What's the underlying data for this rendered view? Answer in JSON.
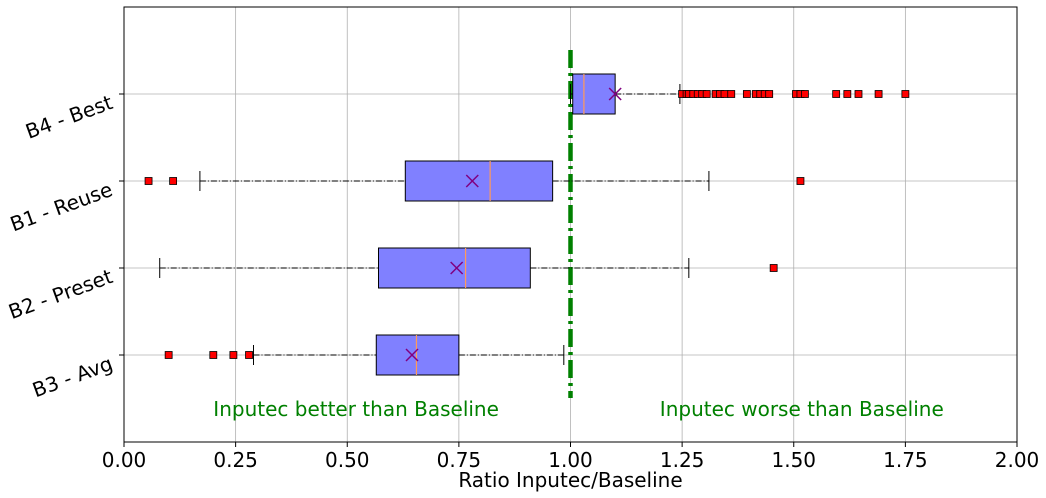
{
  "chart_data": {
    "type": "boxplot",
    "orientation": "horizontal",
    "xlabel": "Ratio Inputec/Baseline",
    "xlim": [
      0.0,
      2.0
    ],
    "xticks": [
      "0.00",
      "0.25",
      "0.50",
      "0.75",
      "1.00",
      "1.25",
      "1.50",
      "1.75",
      "2.00"
    ],
    "grid": true,
    "reference_line": {
      "x": 1.0,
      "color": "#008000",
      "style": "dash-dot"
    },
    "box_color": "#8080ff",
    "median_color": "#ff9a5a",
    "mean_marker_color": "#800080",
    "outlier_color": "#ff0000",
    "series": [
      {
        "name": "B3 - Avg",
        "whisker_low": 0.29,
        "q1": 0.565,
        "median": 0.655,
        "q3": 0.75,
        "whisker_high": 0.985,
        "mean": 0.645,
        "outliers": [
          0.1,
          0.2,
          0.245,
          0.28
        ]
      },
      {
        "name": "B2 - Preset",
        "whisker_low": 0.08,
        "q1": 0.57,
        "median": 0.765,
        "q3": 0.91,
        "whisker_high": 1.265,
        "mean": 0.745,
        "outliers": [
          1.455
        ]
      },
      {
        "name": "B1 - Reuse",
        "whisker_low": 0.17,
        "q1": 0.63,
        "median": 0.82,
        "q3": 0.96,
        "whisker_high": 1.31,
        "mean": 0.78,
        "outliers": [
          0.055,
          0.11,
          1.515
        ]
      },
      {
        "name": "B4 - Best",
        "whisker_low": 1.0,
        "q1": 1.005,
        "median": 1.03,
        "q3": 1.1,
        "whisker_high": 1.245,
        "mean": 1.1,
        "outliers": [
          1.25,
          1.26,
          1.265,
          1.275,
          1.285,
          1.295,
          1.305,
          1.325,
          1.335,
          1.345,
          1.36,
          1.395,
          1.415,
          1.425,
          1.435,
          1.445,
          1.505,
          1.515,
          1.525,
          1.595,
          1.62,
          1.645,
          1.69,
          1.75
        ]
      }
    ],
    "annotations": [
      {
        "text": "Inputec better than Baseline",
        "x": 0.2
      },
      {
        "text": "Inputec worse than Baseline",
        "x": 1.2
      }
    ]
  }
}
